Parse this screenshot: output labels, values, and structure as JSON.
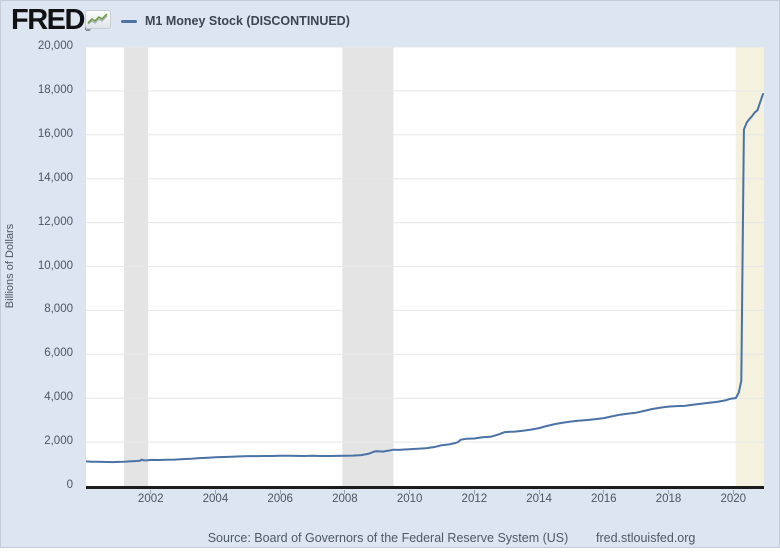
{
  "header": {
    "logo_text": "FRED",
    "logo_registered": "®",
    "logo_icon": "sparkline-chart-icon",
    "legend": {
      "label": "M1 Money Stock (DISCONTINUED)"
    }
  },
  "footer": {
    "source": "Source: Board of Governors of the Federal Reserve System (US)",
    "site": "fred.stlouisfed.org"
  },
  "chart_data": {
    "type": "line",
    "title": "M1 Money Stock (DISCONTINUED)",
    "xlabel": "",
    "ylabel": "Billions of Dollars",
    "x_domain": [
      2000,
      2020.95
    ],
    "y_domain": [
      0,
      20000
    ],
    "x_ticks": [
      2002,
      2004,
      2006,
      2008,
      2010,
      2012,
      2014,
      2016,
      2018,
      2020
    ],
    "y_ticks": [
      0,
      2000,
      4000,
      6000,
      8000,
      10000,
      12000,
      14000,
      16000,
      18000,
      20000
    ],
    "grid": "horizontal",
    "gridline_color": "#e7e7e7",
    "line_color": "#4a72a4",
    "background_color": "#dce5f0",
    "plot_background_color": "#ffffff",
    "legend_position": "top-left",
    "recession_bands": [
      {
        "start": 2001.17,
        "end": 2001.92,
        "color": "#e4e4e4"
      },
      {
        "start": 2007.92,
        "end": 2009.5,
        "color": "#e4e4e4"
      },
      {
        "start": 2020.08,
        "end": 2020.95,
        "color": "#f4f2de"
      }
    ],
    "series": [
      {
        "name": "M1 Money Stock (DISCONTINUED)",
        "units": "Billions of Dollars",
        "points": [
          [
            2000.0,
            1122
          ],
          [
            2000.17,
            1107
          ],
          [
            2000.33,
            1102
          ],
          [
            2000.5,
            1100
          ],
          [
            2000.67,
            1095
          ],
          [
            2000.83,
            1088
          ],
          [
            2001.0,
            1096
          ],
          [
            2001.17,
            1105
          ],
          [
            2001.33,
            1122
          ],
          [
            2001.5,
            1136
          ],
          [
            2001.67,
            1150
          ],
          [
            2001.72,
            1205
          ],
          [
            2001.79,
            1168
          ],
          [
            2001.92,
            1169
          ],
          [
            2002.0,
            1190
          ],
          [
            2002.25,
            1186
          ],
          [
            2002.5,
            1193
          ],
          [
            2002.75,
            1204
          ],
          [
            2003.0,
            1226
          ],
          [
            2003.25,
            1243
          ],
          [
            2003.5,
            1270
          ],
          [
            2003.75,
            1290
          ],
          [
            2004.0,
            1306
          ],
          [
            2004.25,
            1323
          ],
          [
            2004.5,
            1333
          ],
          [
            2004.75,
            1350
          ],
          [
            2005.0,
            1361
          ],
          [
            2005.25,
            1360
          ],
          [
            2005.5,
            1365
          ],
          [
            2005.75,
            1369
          ],
          [
            2006.0,
            1381
          ],
          [
            2006.25,
            1380
          ],
          [
            2006.5,
            1372
          ],
          [
            2006.75,
            1368
          ],
          [
            2007.0,
            1374
          ],
          [
            2007.25,
            1368
          ],
          [
            2007.5,
            1369
          ],
          [
            2007.75,
            1371
          ],
          [
            2008.0,
            1379
          ],
          [
            2008.25,
            1386
          ],
          [
            2008.5,
            1410
          ],
          [
            2008.67,
            1452
          ],
          [
            2008.75,
            1475
          ],
          [
            2008.83,
            1523
          ],
          [
            2008.92,
            1575
          ],
          [
            2009.0,
            1586
          ],
          [
            2009.17,
            1568
          ],
          [
            2009.33,
            1605
          ],
          [
            2009.5,
            1652
          ],
          [
            2009.67,
            1645
          ],
          [
            2009.83,
            1663
          ],
          [
            2010.0,
            1676
          ],
          [
            2010.25,
            1700
          ],
          [
            2010.5,
            1722
          ],
          [
            2010.75,
            1770
          ],
          [
            2011.0,
            1859
          ],
          [
            2011.25,
            1905
          ],
          [
            2011.42,
            1960
          ],
          [
            2011.5,
            2010
          ],
          [
            2011.58,
            2110
          ],
          [
            2011.75,
            2150
          ],
          [
            2012.0,
            2164
          ],
          [
            2012.25,
            2220
          ],
          [
            2012.5,
            2243
          ],
          [
            2012.75,
            2350
          ],
          [
            2012.92,
            2447
          ],
          [
            2013.0,
            2460
          ],
          [
            2013.25,
            2480
          ],
          [
            2013.5,
            2519
          ],
          [
            2013.75,
            2570
          ],
          [
            2014.0,
            2640
          ],
          [
            2014.25,
            2740
          ],
          [
            2014.5,
            2823
          ],
          [
            2014.75,
            2890
          ],
          [
            2015.0,
            2940
          ],
          [
            2015.25,
            2980
          ],
          [
            2015.5,
            3008
          ],
          [
            2015.75,
            3050
          ],
          [
            2016.0,
            3094
          ],
          [
            2016.25,
            3170
          ],
          [
            2016.5,
            3249
          ],
          [
            2016.75,
            3300
          ],
          [
            2017.0,
            3340
          ],
          [
            2017.25,
            3420
          ],
          [
            2017.5,
            3509
          ],
          [
            2017.75,
            3570
          ],
          [
            2018.0,
            3616
          ],
          [
            2018.25,
            3640
          ],
          [
            2018.5,
            3651
          ],
          [
            2018.75,
            3700
          ],
          [
            2019.0,
            3744
          ],
          [
            2019.25,
            3790
          ],
          [
            2019.5,
            3832
          ],
          [
            2019.75,
            3900
          ],
          [
            2019.92,
            3978
          ],
          [
            2020.08,
            4003
          ],
          [
            2020.17,
            4261
          ],
          [
            2020.25,
            4795
          ],
          [
            2020.33,
            16242
          ],
          [
            2020.42,
            16564
          ],
          [
            2020.5,
            16716
          ],
          [
            2020.58,
            16848
          ],
          [
            2020.67,
            17023
          ],
          [
            2020.75,
            17120
          ],
          [
            2020.83,
            17475
          ],
          [
            2020.92,
            17860
          ]
        ]
      }
    ]
  }
}
